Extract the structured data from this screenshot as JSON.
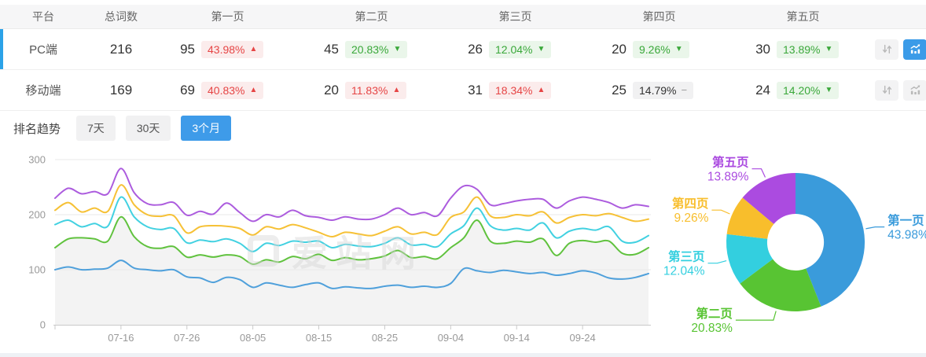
{
  "colors": {
    "accent_blue": "#3e9be9",
    "selected_row_bar": "#2ba2e8",
    "up_red": "#e64545",
    "down_green": "#3aa83a",
    "active_icon_blue": "#3b9be8"
  },
  "table": {
    "columns": [
      "平台",
      "总词数",
      "第一页",
      "第二页",
      "第三页",
      "第四页",
      "第五页"
    ],
    "rows": [
      {
        "platform": "PC端",
        "total": "216",
        "selected": true,
        "trend_chart_active": true,
        "pages": [
          {
            "count": "95",
            "percent": "43.98%",
            "trend": "up"
          },
          {
            "count": "45",
            "percent": "20.83%",
            "trend": "down"
          },
          {
            "count": "26",
            "percent": "12.04%",
            "trend": "down"
          },
          {
            "count": "20",
            "percent": "9.26%",
            "trend": "down"
          },
          {
            "count": "30",
            "percent": "13.89%",
            "trend": "down"
          }
        ]
      },
      {
        "platform": "移动端",
        "total": "169",
        "selected": false,
        "trend_chart_active": false,
        "pages": [
          {
            "count": "69",
            "percent": "40.83%",
            "trend": "up"
          },
          {
            "count": "20",
            "percent": "11.83%",
            "trend": "up"
          },
          {
            "count": "31",
            "percent": "18.34%",
            "trend": "up"
          },
          {
            "count": "25",
            "percent": "14.79%",
            "trend": "flat"
          },
          {
            "count": "24",
            "percent": "14.20%",
            "trend": "down"
          }
        ]
      }
    ]
  },
  "trend_section": {
    "title": "排名趋势",
    "tabs": [
      {
        "label": "7天",
        "active": false
      },
      {
        "label": "30天",
        "active": false
      },
      {
        "label": "3个月",
        "active": true
      }
    ]
  },
  "watermark_text": "爱站网",
  "chart_data": [
    {
      "type": "line",
      "title": "排名趋势（3个月）",
      "ylim": [
        0,
        300
      ],
      "y_ticks": [
        0,
        100,
        200,
        300
      ],
      "grid": "horizontal",
      "x_tick_labels": [
        "07-16",
        "07-26",
        "08-05",
        "08-15",
        "08-25",
        "09-04",
        "09-14",
        "09-24"
      ],
      "x_tick_indices": [
        5,
        10,
        15,
        20,
        25,
        30,
        35,
        40
      ],
      "series": [
        {
          "name": "第一页",
          "color": "#4fa0db",
          "area": false,
          "values": [
            100,
            105,
            100,
            101,
            103,
            117,
            103,
            100,
            98,
            100,
            87,
            85,
            77,
            86,
            82,
            68,
            76,
            72,
            68,
            73,
            76,
            66,
            69,
            67,
            66,
            70,
            72,
            68,
            70,
            68,
            75,
            102,
            98,
            95,
            99,
            96,
            93,
            95,
            90,
            93,
            98,
            94,
            85,
            83,
            86,
            93
          ]
        },
        {
          "name": "第二页",
          "color": "#60c23e",
          "area": true,
          "area_color": "#f3f3f3",
          "values": [
            140,
            156,
            158,
            156,
            152,
            196,
            160,
            142,
            139,
            142,
            123,
            127,
            123,
            127,
            124,
            110,
            118,
            114,
            124,
            120,
            128,
            117,
            122,
            118,
            120,
            125,
            135,
            122,
            124,
            120,
            140,
            158,
            190,
            152,
            148,
            152,
            150,
            156,
            126,
            148,
            153,
            150,
            152,
            130,
            128,
            140
          ]
        },
        {
          "name": "第三页",
          "color": "#42d1e1",
          "area": false,
          "values": [
            182,
            190,
            178,
            184,
            179,
            232,
            196,
            178,
            173,
            175,
            149,
            154,
            151,
            156,
            148,
            133,
            148,
            144,
            152,
            150,
            152,
            140,
            146,
            143,
            142,
            148,
            158,
            145,
            146,
            142,
            165,
            180,
            212,
            180,
            172,
            175,
            172,
            185,
            158,
            170,
            175,
            172,
            178,
            152,
            150,
            162
          ]
        },
        {
          "name": "第四页",
          "color": "#f6c136",
          "area": false,
          "values": [
            208,
            222,
            205,
            212,
            206,
            254,
            218,
            200,
            197,
            198,
            167,
            178,
            180,
            179,
            175,
            163,
            178,
            174,
            182,
            176,
            168,
            160,
            168,
            165,
            162,
            170,
            178,
            165,
            168,
            164,
            195,
            205,
            232,
            198,
            195,
            200,
            198,
            205,
            185,
            195,
            200,
            198,
            202,
            195,
            188,
            192
          ]
        },
        {
          "name": "第五页",
          "color": "#ac5cde",
          "area": false,
          "values": [
            230,
            248,
            238,
            242,
            238,
            284,
            240,
            220,
            218,
            222,
            199,
            206,
            201,
            221,
            204,
            188,
            200,
            196,
            208,
            198,
            195,
            190,
            196,
            192,
            192,
            200,
            212,
            200,
            204,
            198,
            230,
            252,
            246,
            218,
            220,
            225,
            228,
            228,
            212,
            225,
            232,
            228,
            222,
            212,
            218,
            215
          ]
        }
      ]
    },
    {
      "type": "pie",
      "donut": true,
      "slices": [
        {
          "label": "第一页",
          "value": 43.98,
          "percent_label": "43.98%",
          "color": "#3a9bdb"
        },
        {
          "label": "第二页",
          "value": 20.83,
          "percent_label": "20.83%",
          "color": "#58c433"
        },
        {
          "label": "第三页",
          "value": 12.04,
          "percent_label": "12.04%",
          "color": "#33cfdf"
        },
        {
          "label": "第四页",
          "value": 9.26,
          "percent_label": "9.26%",
          "color": "#f8be2c"
        },
        {
          "label": "第五页",
          "value": 13.89,
          "percent_label": "13.89%",
          "color": "#ab4be0"
        }
      ]
    }
  ]
}
